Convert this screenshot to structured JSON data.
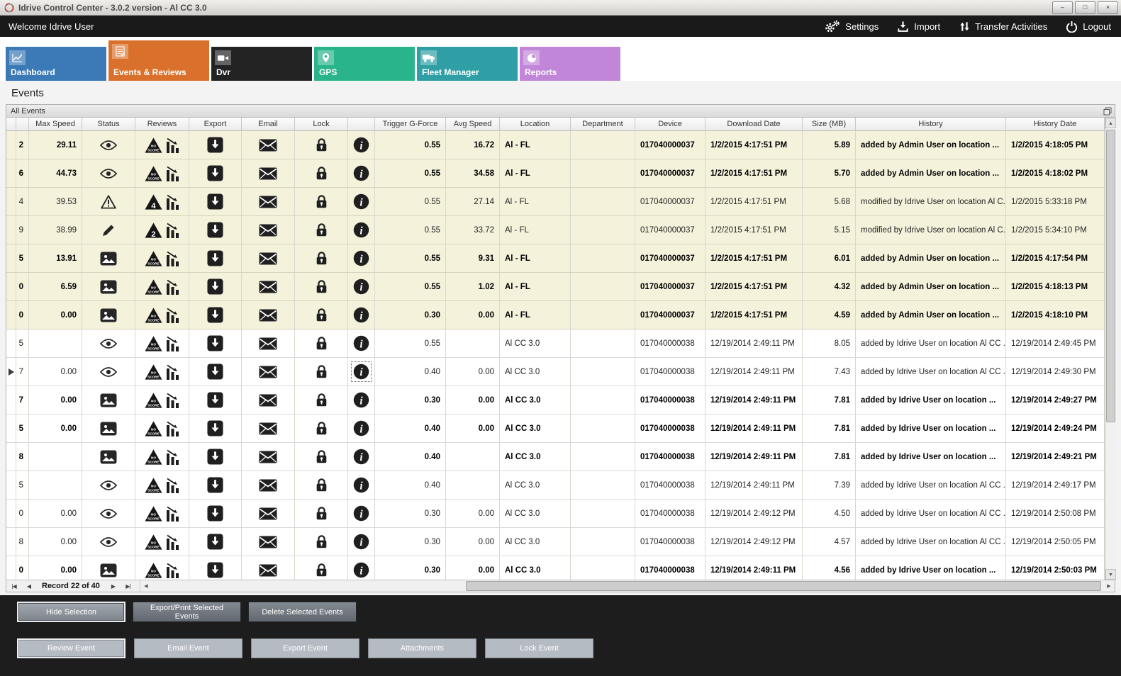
{
  "window": {
    "title": "Idrive Control Center - 3.0.2 version - Al CC 3.0",
    "minimize": "–",
    "maximize": "□",
    "close": "×"
  },
  "header": {
    "welcome": "Welcome Idrive User",
    "actions": [
      {
        "id": "settings",
        "label": "Settings"
      },
      {
        "id": "import",
        "label": "Import"
      },
      {
        "id": "transfer",
        "label": "Transfer Activities"
      },
      {
        "id": "logout",
        "label": "Logout"
      }
    ]
  },
  "tabs": [
    {
      "id": "dashboard",
      "label": "Dashboard",
      "color": "#3b79b7",
      "selected": false
    },
    {
      "id": "events",
      "label": "Events & Reviews",
      "color": "#d9712c",
      "selected": true
    },
    {
      "id": "dvr",
      "label": "Dvr",
      "color": "#232324",
      "selected": false
    },
    {
      "id": "gps",
      "label": "GPS",
      "color": "#2ab48b",
      "selected": false
    },
    {
      "id": "fleet",
      "label": "Fleet Manager",
      "color": "#2f9fa5",
      "selected": false
    },
    {
      "id": "reports",
      "label": "Reports",
      "color": "#c186d8",
      "selected": false
    }
  ],
  "page": {
    "title": "Events",
    "panel": "All Events"
  },
  "grid": {
    "columns": [
      "",
      "",
      "Max Speed",
      "Status",
      "Reviews",
      "Export",
      "Email",
      "Lock",
      "",
      "Trigger G-Force",
      "Avg Speed",
      "Location",
      "Department",
      "Device",
      "Download Date",
      "Size (MB)",
      "History",
      "History Date"
    ],
    "rows": [
      {
        "id": "2",
        "max_speed": "29.11",
        "status": "eye",
        "review": "NO SCORE",
        "trigger": "0.55",
        "avg_speed": "16.72",
        "location": "Al - FL",
        "department": "",
        "device": "017040000037",
        "download_date": "1/2/2015 4:17:51 PM",
        "size": "5.89",
        "history": "added by Admin User on location ...",
        "history_date": "1/2/2015 4:18:05 PM",
        "bold": true,
        "shaded": true,
        "selected": false
      },
      {
        "id": "6",
        "max_speed": "44.73",
        "status": "eye",
        "review": "NO SCORE",
        "trigger": "0.55",
        "avg_speed": "34.58",
        "location": "Al - FL",
        "department": "",
        "device": "017040000037",
        "download_date": "1/2/2015 4:17:51 PM",
        "size": "5.70",
        "history": "added by Admin User on location ...",
        "history_date": "1/2/2015 4:18:02 PM",
        "bold": true,
        "shaded": true,
        "selected": false
      },
      {
        "id": "4",
        "max_speed": "39.53",
        "status": "warning",
        "review": "4",
        "trigger": "0.55",
        "avg_speed": "27.14",
        "location": "Al - FL",
        "department": "",
        "device": "017040000037",
        "download_date": "1/2/2015 4:17:51 PM",
        "size": "5.68",
        "history": "modified by Idrive User on location Al C...",
        "history_date": "1/2/2015 5:33:18 PM",
        "bold": false,
        "shaded": true,
        "selected": false
      },
      {
        "id": "9",
        "max_speed": "38.99",
        "status": "pencil",
        "review": "2",
        "trigger": "0.55",
        "avg_speed": "33.72",
        "location": "Al - FL",
        "department": "",
        "device": "017040000037",
        "download_date": "1/2/2015 4:17:51 PM",
        "size": "5.15",
        "history": "modified by Idrive User on location Al C...",
        "history_date": "1/2/2015 5:34:10 PM",
        "bold": false,
        "shaded": true,
        "selected": false
      },
      {
        "id": "5",
        "max_speed": "13.91",
        "status": "image",
        "review": "NO SCORE",
        "trigger": "0.55",
        "avg_speed": "9.31",
        "location": "Al - FL",
        "department": "",
        "device": "017040000037",
        "download_date": "1/2/2015 4:17:51 PM",
        "size": "6.01",
        "history": "added by Admin User on location ...",
        "history_date": "1/2/2015 4:17:54 PM",
        "bold": true,
        "shaded": true,
        "selected": false
      },
      {
        "id": "0",
        "max_speed": "6.59",
        "status": "image",
        "review": "NO SCORE",
        "trigger": "0.55",
        "avg_speed": "1.02",
        "location": "Al - FL",
        "department": "",
        "device": "017040000037",
        "download_date": "1/2/2015 4:17:51 PM",
        "size": "4.32",
        "history": "added by Admin User on location ...",
        "history_date": "1/2/2015 4:18:13 PM",
        "bold": true,
        "shaded": true,
        "selected": false
      },
      {
        "id": "0",
        "max_speed": "0.00",
        "status": "image",
        "review": "NO SCORE",
        "trigger": "0.30",
        "avg_speed": "0.00",
        "location": "Al - FL",
        "department": "",
        "device": "017040000037",
        "download_date": "1/2/2015 4:17:51 PM",
        "size": "4.59",
        "history": "added by Admin User on location ...",
        "history_date": "1/2/2015 4:18:10 PM",
        "bold": true,
        "shaded": true,
        "selected": false
      },
      {
        "id": "5",
        "max_speed": "",
        "status": "eye",
        "review": "NO SCORE",
        "trigger": "0.55",
        "avg_speed": "",
        "location": "Al CC 3.0",
        "department": "",
        "device": "017040000038",
        "download_date": "12/19/2014 2:49:11 PM",
        "size": "8.05",
        "history": "added by Idrive User on location Al CC ...",
        "history_date": "12/19/2014 2:49:45 PM",
        "bold": false,
        "shaded": false,
        "selected": false
      },
      {
        "id": "7",
        "max_speed": "0.00",
        "status": "eye",
        "review": "NO SCORE",
        "trigger": "0.40",
        "avg_speed": "0.00",
        "location": "Al CC 3.0",
        "department": "",
        "device": "017040000038",
        "download_date": "12/19/2014 2:49:11 PM",
        "size": "7.43",
        "history": "added by Idrive User on location Al CC ...",
        "history_date": "12/19/2014 2:49:30 PM",
        "bold": false,
        "shaded": false,
        "selected": true
      },
      {
        "id": "7",
        "max_speed": "0.00",
        "status": "image",
        "review": "NO SCORE",
        "trigger": "0.30",
        "avg_speed": "0.00",
        "location": "Al CC 3.0",
        "department": "",
        "device": "017040000038",
        "download_date": "12/19/2014 2:49:11 PM",
        "size": "7.81",
        "history": "added by Idrive User on location ...",
        "history_date": "12/19/2014 2:49:27 PM",
        "bold": true,
        "shaded": false,
        "selected": false
      },
      {
        "id": "5",
        "max_speed": "0.00",
        "status": "image",
        "review": "NO SCORE",
        "trigger": "0.40",
        "avg_speed": "0.00",
        "location": "Al CC 3.0",
        "department": "",
        "device": "017040000038",
        "download_date": "12/19/2014 2:49:11 PM",
        "size": "7.81",
        "history": "added by Idrive User on location ...",
        "history_date": "12/19/2014 2:49:24 PM",
        "bold": true,
        "shaded": false,
        "selected": false
      },
      {
        "id": "8",
        "max_speed": "",
        "status": "image",
        "review": "NO SCORE",
        "trigger": "0.40",
        "avg_speed": "",
        "location": "Al CC 3.0",
        "department": "",
        "device": "017040000038",
        "download_date": "12/19/2014 2:49:11 PM",
        "size": "7.81",
        "history": "added by Idrive User on location ...",
        "history_date": "12/19/2014 2:49:21 PM",
        "bold": true,
        "shaded": false,
        "selected": false
      },
      {
        "id": "5",
        "max_speed": "",
        "status": "eye",
        "review": "NO SCORE",
        "trigger": "0.40",
        "avg_speed": "",
        "location": "Al CC 3.0",
        "department": "",
        "device": "017040000038",
        "download_date": "12/19/2014 2:49:11 PM",
        "size": "7.39",
        "history": "added by Idrive User on location Al CC ...",
        "history_date": "12/19/2014 2:49:17 PM",
        "bold": false,
        "shaded": false,
        "selected": false
      },
      {
        "id": "0",
        "max_speed": "0.00",
        "status": "eye",
        "review": "NO SCORE",
        "trigger": "0.30",
        "avg_speed": "0.00",
        "location": "Al CC 3.0",
        "department": "",
        "device": "017040000038",
        "download_date": "12/19/2014 2:49:12 PM",
        "size": "4.50",
        "history": "added by Idrive User on location Al CC ...",
        "history_date": "12/19/2014 2:50:08 PM",
        "bold": false,
        "shaded": false,
        "selected": false
      },
      {
        "id": "8",
        "max_speed": "0.00",
        "status": "eye",
        "review": "NO SCORE",
        "trigger": "0.30",
        "avg_speed": "0.00",
        "location": "Al CC 3.0",
        "department": "",
        "device": "017040000038",
        "download_date": "12/19/2014 2:49:12 PM",
        "size": "4.57",
        "history": "added by Idrive User on location Al CC ...",
        "history_date": "12/19/2014 2:50:05 PM",
        "bold": false,
        "shaded": false,
        "selected": false
      },
      {
        "id": "0",
        "max_speed": "0.00",
        "status": "image",
        "review": "NO SCORE",
        "trigger": "0.30",
        "avg_speed": "0.00",
        "location": "Al CC 3.0",
        "department": "",
        "device": "017040000038",
        "download_date": "12/19/2014 2:49:11 PM",
        "size": "4.56",
        "history": "added by Idrive User on location ...",
        "history_date": "12/19/2014 2:50:03 PM",
        "bold": true,
        "shaded": false,
        "selected": false
      }
    ]
  },
  "navigator": {
    "label": "Record 22 of 40",
    "first": "|◀",
    "prev": "◀",
    "next": "▶",
    "last": "▶|",
    "up": "▲",
    "down": "▼"
  },
  "footer": {
    "primary": [
      "Hide Selection",
      "Export/Print Selected Events",
      "Delete Selected Events"
    ],
    "secondary": [
      "Review Event",
      "Email Event",
      "Export Event",
      "Attachments",
      "Lock Event"
    ]
  }
}
